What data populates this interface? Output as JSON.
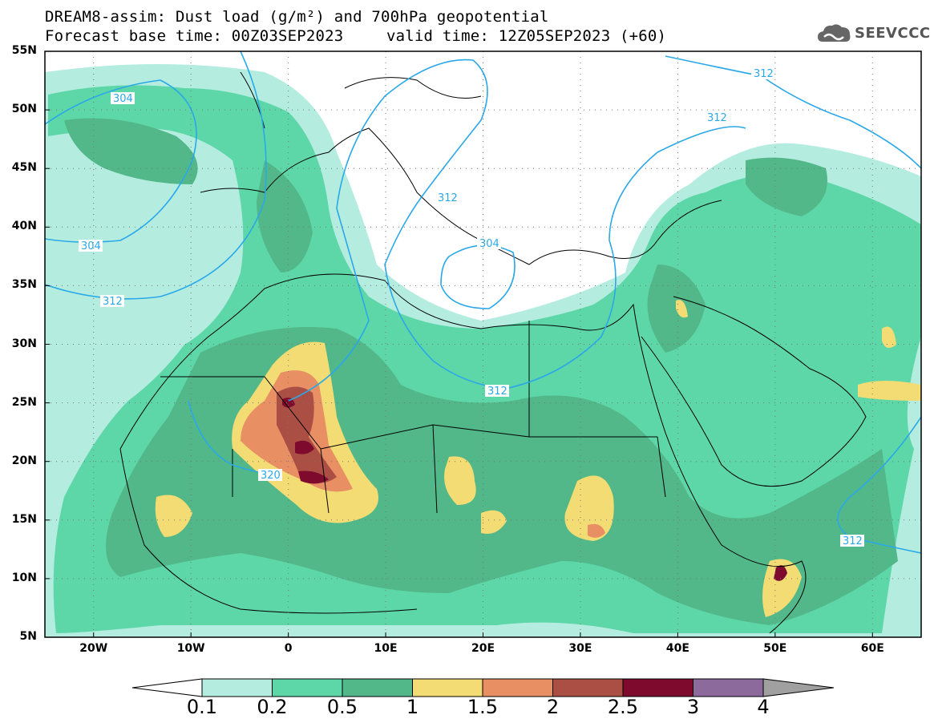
{
  "title": {
    "line1": "DREAM8-assim: Dust load (g/m²) and 700hPa geopotential",
    "line2_left": "Forecast base time: 00Z03SEP2023",
    "line2_right": "valid time: 12Z05SEP2023 (+60)"
  },
  "logo": {
    "text": "SEEVCCC",
    "icon": "cloud-icon"
  },
  "axes": {
    "lat_labels": [
      "55N",
      "50N",
      "45N",
      "40N",
      "35N",
      "30N",
      "25N",
      "20N",
      "15N",
      "10N",
      "5N"
    ],
    "lon_labels": [
      "20W",
      "10W",
      "0",
      "10E",
      "20E",
      "30E",
      "40E",
      "50E",
      "60E"
    ],
    "lat_range": [
      5,
      55
    ],
    "lon_range": [
      -25,
      65
    ]
  },
  "colorbar": {
    "labels": [
      "0.1",
      "0.2",
      "0.5",
      "1",
      "1.5",
      "2",
      "2.5",
      "3",
      "4"
    ],
    "colors": [
      "#ffffff",
      "#b4ede0",
      "#5ed7a8",
      "#52b889",
      "#f2dc73",
      "#e88f64",
      "#ab4f44",
      "#7e0b2e",
      "#8c6a9c",
      "#a0a0a0"
    ]
  },
  "contours": [
    {
      "label": "304"
    },
    {
      "label": "304"
    },
    {
      "label": "312"
    },
    {
      "label": "312"
    },
    {
      "label": "312"
    },
    {
      "label": "312"
    },
    {
      "label": "312"
    },
    {
      "label": "312"
    },
    {
      "label": "320"
    },
    {
      "label": "304"
    }
  ],
  "colors": {
    "contour": "#2aa8e8",
    "border": "#000000"
  }
}
